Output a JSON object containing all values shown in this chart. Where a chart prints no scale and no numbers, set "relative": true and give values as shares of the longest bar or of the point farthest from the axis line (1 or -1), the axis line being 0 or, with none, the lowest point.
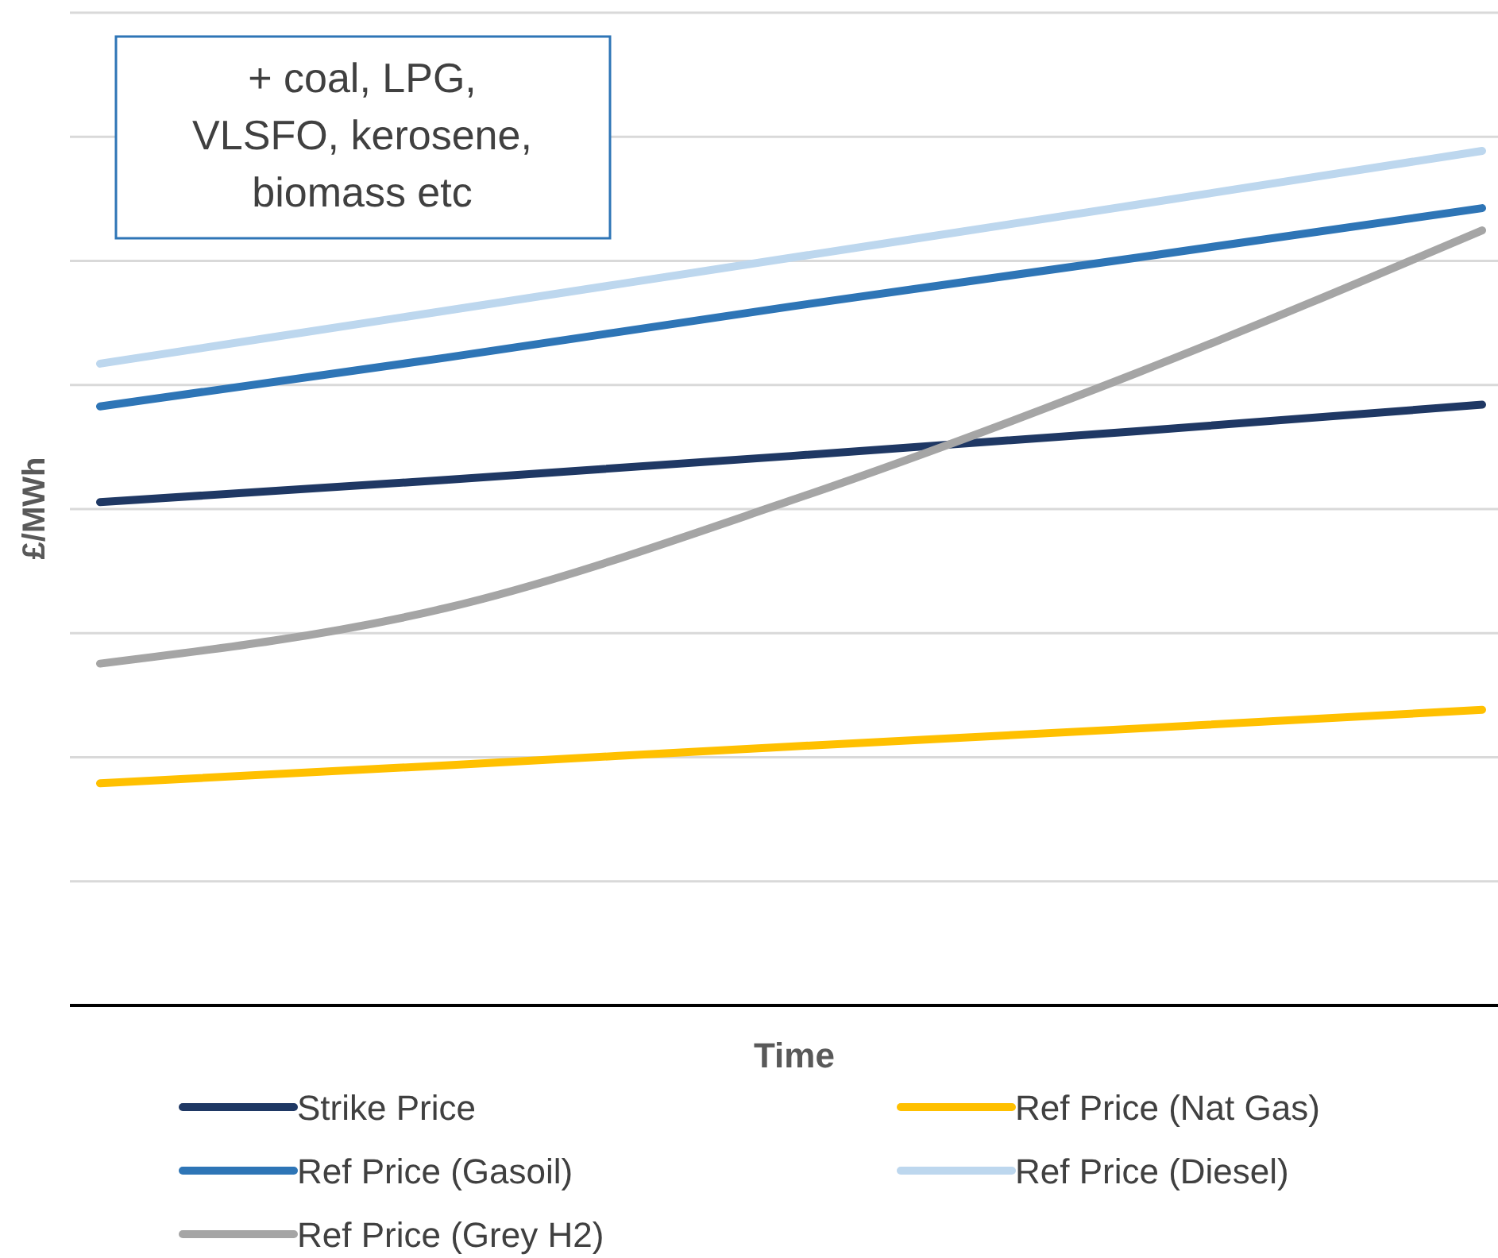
{
  "chart_data": {
    "type": "line",
    "relative": true,
    "xlabel": "Time",
    "ylabel": "£/MWh",
    "categories": [
      null,
      null,
      null,
      null,
      null
    ],
    "grid": "y",
    "legend": "bottom",
    "annotations": [
      "+ coal, LPG, VLSFO, kerosene, biomass etc"
    ],
    "series": [
      {
        "name": "Strike Price",
        "color": "#1f3864",
        "values": [
          0.589,
          0.615,
          0.643,
          0.672,
          0.703
        ]
      },
      {
        "name": "Ref Price (Nat Gas)",
        "color": "#ffc000",
        "values": [
          0.26,
          0.281,
          0.303,
          0.324,
          0.346
        ]
      },
      {
        "name": "Ref Price (Gasoil)",
        "color": "#2e75b6",
        "values": [
          0.701,
          0.758,
          0.818,
          0.875,
          0.933
        ]
      },
      {
        "name": "Ref Price (Diesel)",
        "color": "#bdd7ee",
        "values": [
          0.751,
          0.813,
          0.875,
          0.937,
          1.0
        ]
      },
      {
        "name": "Ref Price (Grey H2)",
        "color": "#a5a5a5",
        "values": [
          0.4,
          0.465,
          0.591,
          0.74,
          0.907
        ]
      }
    ]
  }
}
